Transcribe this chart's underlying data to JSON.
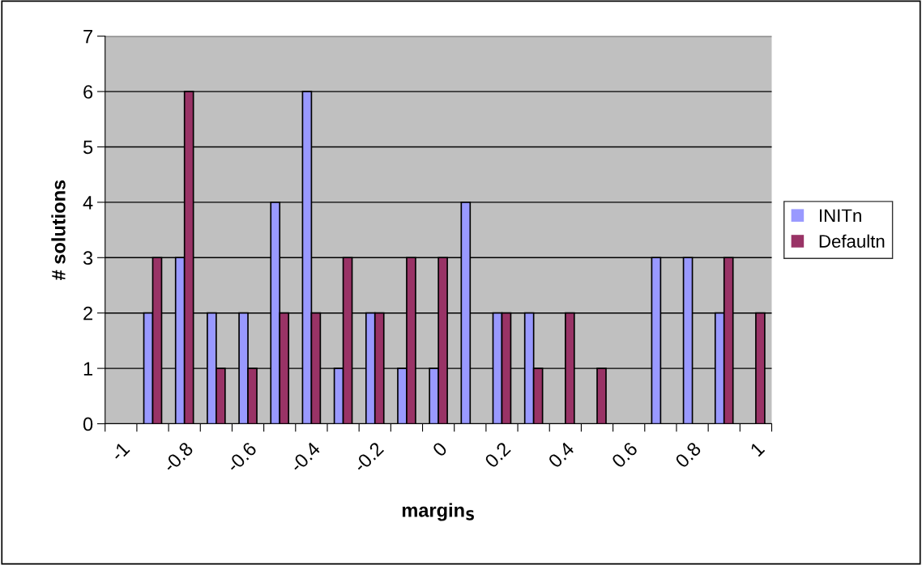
{
  "chart_data": {
    "type": "bar",
    "xlabel": "margin$_{S}$",
    "ylabel": "# solutions",
    "categories": [
      "-1",
      null,
      "-0.8",
      null,
      "-0.6",
      null,
      "-0.4",
      null,
      "-0.2",
      null,
      "0",
      null,
      "0.2",
      null,
      "0.4",
      null,
      "0.6",
      null,
      "0.8",
      null,
      "1"
    ],
    "series": [
      {
        "name": "INITn",
        "color": "#9999ff",
        "values": [
          0,
          2,
          3,
          2,
          2,
          4,
          6,
          1,
          2,
          1,
          1,
          4,
          2,
          2,
          0,
          0,
          0,
          3,
          3,
          2,
          0
        ]
      },
      {
        "name": "Defaultn",
        "color": "#993366",
        "values": [
          0,
          3,
          6,
          1,
          1,
          2,
          2,
          3,
          2,
          3,
          3,
          0,
          2,
          1,
          2,
          1,
          0,
          0,
          0,
          3,
          2
        ]
      }
    ],
    "ylim": [
      0,
      7
    ],
    "yticks": [
      0,
      1,
      2,
      3,
      4,
      5,
      6,
      7
    ],
    "grid": "y",
    "legend": "right"
  }
}
